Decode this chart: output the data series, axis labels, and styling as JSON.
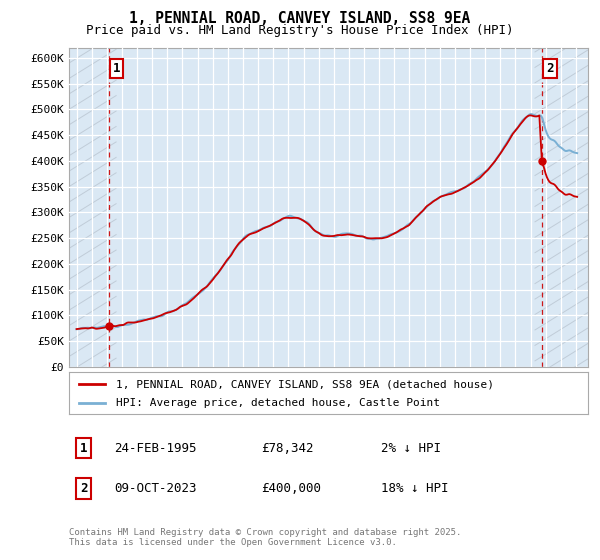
{
  "title": "1, PENNIAL ROAD, CANVEY ISLAND, SS8 9EA",
  "subtitle": "Price paid vs. HM Land Registry's House Price Index (HPI)",
  "ylim": [
    0,
    620000
  ],
  "yticks": [
    0,
    50000,
    100000,
    150000,
    200000,
    250000,
    300000,
    350000,
    400000,
    450000,
    500000,
    550000,
    600000
  ],
  "ytick_labels": [
    "£0",
    "£50K",
    "£100K",
    "£150K",
    "£200K",
    "£250K",
    "£300K",
    "£350K",
    "£400K",
    "£450K",
    "£500K",
    "£550K",
    "£600K"
  ],
  "bg_color": "#dae8f4",
  "grid_color": "white",
  "hpi_color": "#7ab0d4",
  "price_color": "#cc0000",
  "hatch_color": "#c0ccd8",
  "t1_year_float": 1995.14,
  "t1_price": 78342,
  "t2_year_float": 2023.77,
  "t2_price": 400000,
  "xlim_left": 1992.5,
  "xlim_right": 2026.8,
  "legend_line1": "1, PENNIAL ROAD, CANVEY ISLAND, SS8 9EA (detached house)",
  "legend_line2": "HPI: Average price, detached house, Castle Point",
  "ann1_label": "1",
  "ann1_date": "24-FEB-1995",
  "ann1_price": "£78,342",
  "ann1_hpi": "2% ↓ HPI",
  "ann2_label": "2",
  "ann2_date": "09-OCT-2023",
  "ann2_price": "£400,000",
  "ann2_hpi": "18% ↓ HPI",
  "footer": "Contains HM Land Registry data © Crown copyright and database right 2025.\nThis data is licensed under the Open Government Licence v3.0."
}
